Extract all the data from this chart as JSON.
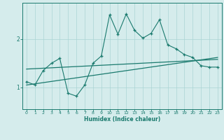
{
  "xlabel": "Humidex (Indice chaleur)",
  "background_color": "#d5ecec",
  "line_color": "#1a7a6e",
  "grid_color": "#aad4d4",
  "x_ticks": [
    0,
    1,
    2,
    3,
    4,
    5,
    6,
    7,
    8,
    9,
    10,
    11,
    12,
    13,
    14,
    15,
    16,
    17,
    18,
    19,
    20,
    21,
    22,
    23
  ],
  "y_ticks": [
    1,
    2
  ],
  "ylim": [
    0.55,
    2.75
  ],
  "xlim": [
    -0.5,
    23.5
  ],
  "series1_x": [
    0,
    1,
    2,
    3,
    4,
    5,
    6,
    7,
    8,
    9,
    10,
    11,
    12,
    13,
    14,
    15,
    16,
    17,
    18,
    19,
    20,
    21,
    22,
    23
  ],
  "series1_y": [
    1.12,
    1.05,
    1.35,
    1.5,
    1.6,
    0.88,
    0.82,
    1.05,
    1.5,
    1.65,
    2.5,
    2.1,
    2.52,
    2.18,
    2.02,
    2.12,
    2.4,
    1.88,
    1.8,
    1.68,
    1.62,
    1.45,
    1.42,
    1.42
  ],
  "series2_x": [
    0,
    23
  ],
  "series2_y": [
    1.38,
    1.58
  ],
  "series3_x": [
    0,
    23
  ],
  "series3_y": [
    1.05,
    1.62
  ]
}
